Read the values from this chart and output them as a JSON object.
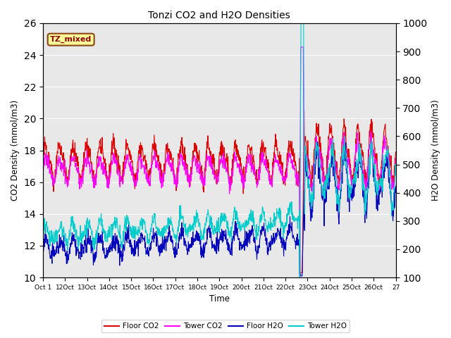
{
  "title": "Tonzi CO2 and H2O Densities",
  "xlabel": "Time",
  "ylabel_left": "CO2 Density (mmol/m3)",
  "ylabel_right": "H2O Density (mmol/m3)",
  "ylim_left": [
    10,
    26
  ],
  "ylim_right": [
    100,
    1000
  ],
  "xtick_labels": [
    "Oct 1",
    "12Oct",
    "13Oct",
    "14Oct",
    "15Oct",
    "16Oct",
    "17Oct",
    "18Oct",
    "19Oct",
    "200ct",
    "21Oct",
    "22Oct",
    "23Oct",
    "24Oct",
    "25Oct",
    "26Oct",
    "27"
  ],
  "annotation_text": "TZ_mixed",
  "annotation_color": "#8B0000",
  "annotation_bg": "#ffff99",
  "annotation_edge": "#8B4513",
  "background_color": "#e8e8e8",
  "colors": {
    "floor_co2": "#dd0000",
    "tower_co2": "#ff00ff",
    "floor_h2o": "#0000bb",
    "tower_h2o": "#00cccc"
  },
  "legend_labels": [
    "Floor CO2",
    "Tower CO2",
    "Floor H2O",
    "Tower H2O"
  ],
  "n_days": 26,
  "spike_day": 19.0,
  "random_seed": 42
}
